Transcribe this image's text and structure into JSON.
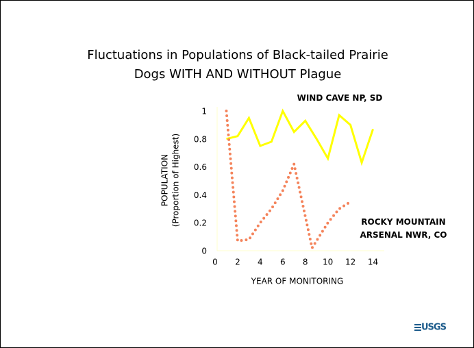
{
  "chart_data": {
    "type": "line",
    "title": [
      "Fluctuations in Populations of Black-tailed Prairie",
      "Dogs WITH AND WITHOUT Plague"
    ],
    "xlabel": "YEAR OF MONITORING",
    "ylabel": [
      "POPULATION",
      "(Proportion of Highest)"
    ],
    "series": [
      {
        "name": "WIND CAVE NP, SD",
        "color": "#ffff00",
        "style": "solid",
        "x": [
          1,
          2,
          3,
          4,
          5,
          6,
          7,
          8,
          9,
          10,
          11,
          12,
          13,
          14
        ],
        "values": [
          0.8,
          0.82,
          0.95,
          0.75,
          0.78,
          1.0,
          0.85,
          0.93,
          0.8,
          0.66,
          0.97,
          0.9,
          0.63,
          0.87
        ]
      },
      {
        "name": "ROCKY MOUNTAIN ARSENAL NWR, CO",
        "color": "#f4845c",
        "style": "dotted",
        "x": [
          1,
          2,
          3,
          4,
          5,
          6,
          7,
          8.6,
          10,
          11,
          12
        ],
        "values": [
          1.0,
          0.07,
          0.08,
          0.2,
          0.3,
          0.43,
          0.62,
          0.02,
          0.2,
          0.3,
          0.35
        ]
      }
    ],
    "xlim": [
      0,
      15
    ],
    "xticks": [
      0,
      2,
      4,
      6,
      8,
      10,
      12,
      14
    ],
    "ylim": [
      0,
      1
    ],
    "yticks": [
      0,
      0.2,
      0.4,
      0.6,
      0.8,
      1
    ],
    "logo": "USGS"
  }
}
